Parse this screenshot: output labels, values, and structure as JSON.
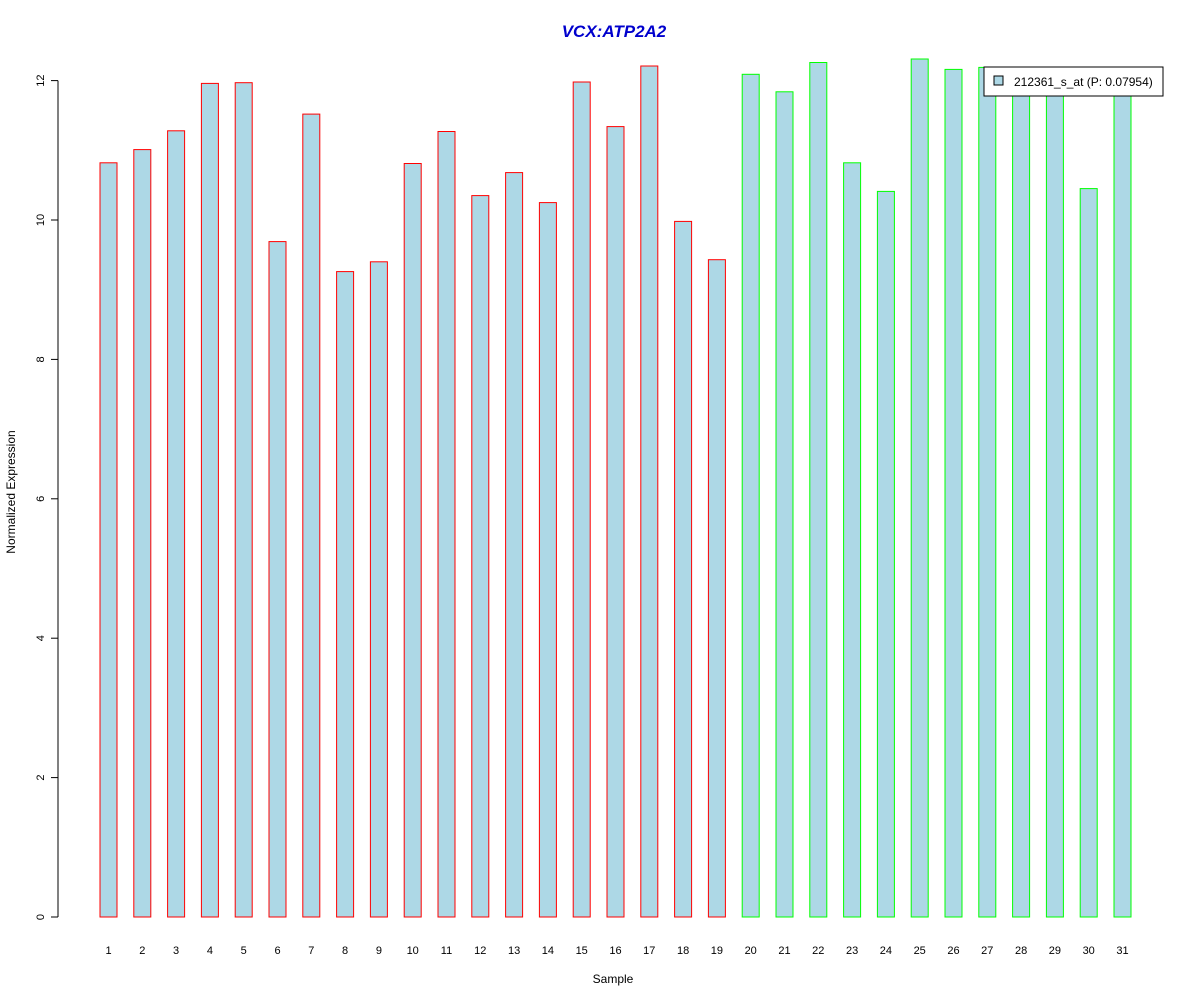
{
  "chart_data": {
    "type": "bar",
    "title": "VCX:ATP2A2",
    "xlabel": "Sample",
    "ylabel": "Normalized Expression",
    "ylim": [
      0,
      12.3
    ],
    "y_ticks": [
      0,
      2,
      4,
      6,
      8,
      10,
      12
    ],
    "categories": [
      "1",
      "2",
      "3",
      "4",
      "5",
      "6",
      "7",
      "8",
      "9",
      "10",
      "11",
      "12",
      "13",
      "14",
      "15",
      "16",
      "17",
      "18",
      "19",
      "20",
      "21",
      "22",
      "23",
      "24",
      "25",
      "26",
      "27",
      "28",
      "29",
      "30",
      "31"
    ],
    "series": [
      {
        "name": "212361_s_at (P: 0.07954)",
        "values": [
          10.82,
          11.01,
          11.28,
          11.96,
          11.97,
          9.69,
          11.52,
          9.26,
          9.4,
          10.81,
          11.27,
          10.35,
          10.68,
          10.25,
          11.98,
          11.34,
          12.21,
          9.98,
          9.43,
          12.09,
          11.84,
          12.26,
          10.82,
          10.41,
          12.31,
          12.16,
          12.19,
          11.9,
          11.9,
          10.45,
          11.86
        ]
      }
    ],
    "groups": [
      "red",
      "red",
      "red",
      "red",
      "red",
      "red",
      "red",
      "red",
      "red",
      "red",
      "red",
      "red",
      "red",
      "red",
      "red",
      "red",
      "red",
      "red",
      "red",
      "green",
      "green",
      "green",
      "green",
      "green",
      "green",
      "green",
      "green",
      "green",
      "green",
      "green",
      "green"
    ],
    "legend_position": "top-right",
    "grid": false,
    "colors": {
      "fill": "#add8e6",
      "red": "#ff0000",
      "green": "#00ff00",
      "title": "#0000cd",
      "axis": "#000000"
    }
  }
}
